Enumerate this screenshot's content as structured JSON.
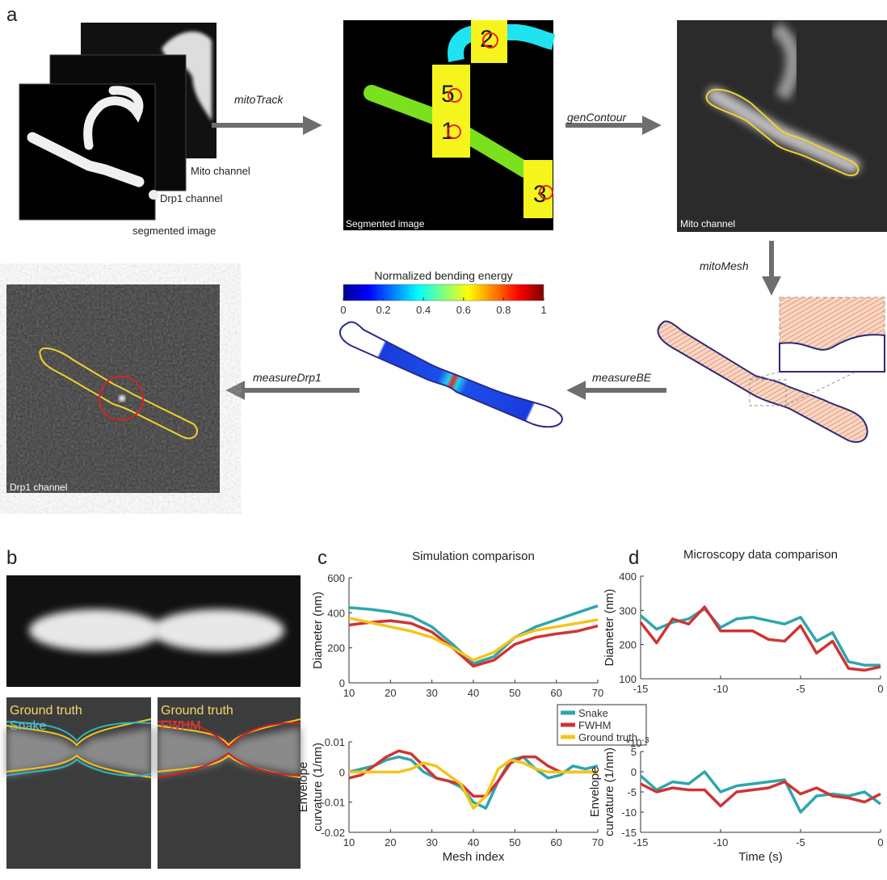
{
  "panel_labels": [
    "a",
    "b",
    "c",
    "d"
  ],
  "panel_a": {
    "stack_labels": [
      "Mito channel",
      "Drp1 channel",
      "segmented image"
    ],
    "steps": [
      "mitoTrack",
      "genContour",
      "mitoMesh",
      "measureBE",
      "measureDrp1"
    ],
    "image_labels": [
      "Segmented image",
      "Mito channel",
      "Drp1 channel"
    ],
    "object_ids": [
      "2",
      "5",
      "1",
      "3"
    ],
    "colorbar": {
      "title": "Normalized bending energy",
      "ticks": [
        0,
        0.2,
        0.4,
        0.6,
        0.8,
        1
      ]
    }
  },
  "panel_b": {
    "labels": [
      "Ground truth",
      "Snake",
      "Ground truth",
      "FWHM"
    ]
  },
  "chart_data": [
    {
      "type": "line",
      "title": "Simulation comparison",
      "ylabel": [
        "Diameter (nm)"
      ],
      "x": [
        10,
        15,
        20,
        25,
        30,
        35,
        40,
        45,
        50,
        55,
        60,
        65,
        70
      ],
      "xlim": [
        10,
        70
      ],
      "xticks": [
        10,
        20,
        30,
        40,
        50,
        60,
        70
      ],
      "ylim": [
        0,
        600
      ],
      "yticks": [
        0,
        200,
        400,
        600
      ],
      "series": [
        {
          "name": "Snake",
          "color": "#2ea6ad",
          "values": [
            430,
            420,
            405,
            380,
            320,
            220,
            110,
            150,
            260,
            320,
            360,
            400,
            440
          ]
        },
        {
          "name": "FWHM",
          "color": "#cf3434",
          "values": [
            330,
            345,
            355,
            340,
            290,
            200,
            95,
            130,
            220,
            260,
            280,
            295,
            325
          ]
        },
        {
          "name": "Ground truth",
          "color": "#f3c51b",
          "values": [
            370,
            345,
            320,
            295,
            260,
            200,
            130,
            175,
            260,
            300,
            320,
            340,
            360
          ]
        }
      ]
    },
    {
      "type": "line",
      "ylabel": [
        "Envelope",
        "curvature (1/nm)"
      ],
      "xlabel": "Mesh index",
      "legend": "upper right",
      "x": [
        10,
        13,
        16,
        19,
        22,
        25,
        28,
        31,
        34,
        37,
        40,
        43,
        46,
        49,
        52,
        55,
        58,
        61,
        64,
        67,
        70
      ],
      "xlim": [
        10,
        70
      ],
      "xticks": [
        10,
        20,
        30,
        40,
        50,
        60,
        70
      ],
      "ylim": [
        -0.02,
        0.01
      ],
      "yticks": [
        -0.02,
        -0.01,
        0,
        0.01
      ],
      "series": [
        {
          "name": "Snake",
          "color": "#2ea6ad",
          "values": [
            0,
            0.001,
            0.002,
            0.004,
            0.005,
            0.004,
            0,
            -0.002,
            -0.003,
            -0.005,
            -0.01,
            -0.012,
            -0.003,
            0.004,
            0.005,
            0.001,
            -0.002,
            -0.001,
            0.002,
            0.001,
            0.002
          ]
        },
        {
          "name": "FWHM",
          "color": "#cf3434",
          "values": [
            -0.002,
            -0.001,
            0.002,
            0.005,
            0.007,
            0.006,
            0.002,
            -0.002,
            -0.003,
            -0.004,
            -0.008,
            -0.008,
            -0.003,
            0.003,
            0.005,
            0.005,
            0.002,
            0,
            0,
            0,
            0
          ]
        },
        {
          "name": "Ground truth",
          "color": "#f3c51b",
          "values": [
            0,
            0,
            0,
            0,
            0,
            0.001,
            0.003,
            0.002,
            -0.001,
            -0.004,
            -0.012,
            -0.008,
            0.001,
            0.004,
            0.003,
            0.001,
            0,
            0,
            0,
            0,
            0
          ]
        }
      ]
    },
    {
      "type": "line",
      "title": "Microscopy data comparison",
      "ylabel": [
        "Diameter (nm)"
      ],
      "x": [
        -15,
        -14,
        -13,
        -12,
        -11,
        -10,
        -9,
        -8,
        -7,
        -6,
        -5,
        -4,
        -3,
        -2,
        -1,
        0
      ],
      "xlim": [
        -15,
        0
      ],
      "xticks": [
        -15,
        -10,
        -5,
        0
      ],
      "ylim": [
        100,
        400
      ],
      "yticks": [
        100,
        200,
        300,
        400
      ],
      "series": [
        {
          "name": "Snake",
          "color": "#2ea6ad",
          "values": [
            285,
            245,
            265,
            275,
            305,
            250,
            275,
            280,
            270,
            260,
            280,
            210,
            235,
            150,
            140,
            140
          ]
        },
        {
          "name": "FWHM",
          "color": "#cf3434",
          "values": [
            265,
            205,
            275,
            260,
            310,
            240,
            240,
            240,
            215,
            210,
            255,
            175,
            210,
            130,
            125,
            135
          ]
        }
      ]
    },
    {
      "type": "line",
      "ylabel": [
        "Envelope",
        "curvature (1/nm)"
      ],
      "xlabel": "Time (s)",
      "annotation": {
        "base": "*10",
        "exponent": "-3"
      },
      "x": [
        -15,
        -14,
        -13,
        -12,
        -11,
        -10,
        -9,
        -8,
        -7,
        -6,
        -5,
        -4,
        -3,
        -2,
        -1,
        0
      ],
      "xlim": [
        -15,
        0
      ],
      "xticks": [
        -15,
        -10,
        -5,
        0
      ],
      "ylim": [
        -15,
        5
      ],
      "yticks": [
        -15,
        -10,
        -5,
        0,
        5
      ],
      "series": [
        {
          "name": "Snake",
          "color": "#2ea6ad",
          "values": [
            -1,
            -4.5,
            -2.5,
            -3,
            0,
            -5,
            -3.5,
            -3,
            -2.5,
            -2,
            -10,
            -6,
            -5.5,
            -6,
            -5,
            -8
          ]
        },
        {
          "name": "FWHM",
          "color": "#cf3434",
          "values": [
            -3,
            -5,
            -4,
            -4.5,
            -4.5,
            -8.5,
            -5,
            -4.5,
            -4,
            -2.5,
            -5.5,
            -4,
            -6,
            -6.5,
            -7.5,
            -5.5
          ]
        }
      ]
    }
  ]
}
